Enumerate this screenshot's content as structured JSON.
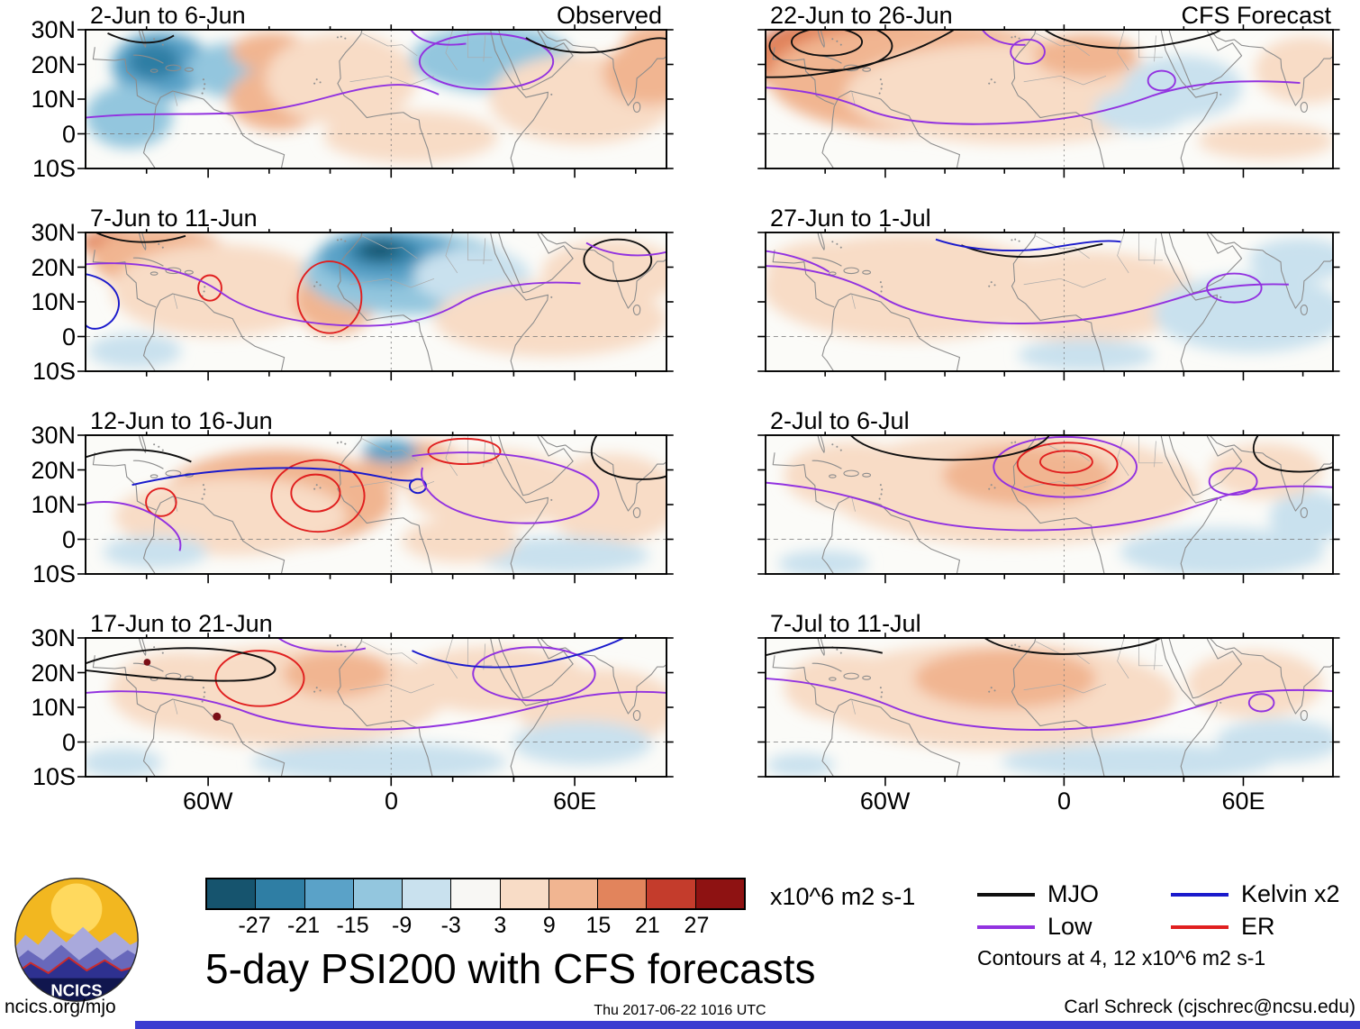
{
  "meta": {
    "footer_left": "ncics.org/mjo",
    "footer_center": "Thu 2017-06-22 1016 UTC",
    "footer_right": "Carl Schreck (cjschrec@ncsu.edu)",
    "logo_text": "NCICS"
  },
  "chart_data": {
    "type": "heatmap",
    "title": "5-day PSI200 with CFS forecasts",
    "description": "Eight 5-day mean 200-hPa streamfunction anomaly maps (shaded, x10^6 m2 s-1) over the tropical Atlantic and Africa with wave-filtered contours; left column observed, right column CFS forecast",
    "columns": [
      {
        "label": "Observed"
      },
      {
        "label": "CFS Forecast"
      }
    ],
    "panels": [
      {
        "title": "2-Jun to 6-Jun",
        "column": "Observed"
      },
      {
        "title": "7-Jun to 11-Jun",
        "column": "Observed"
      },
      {
        "title": "12-Jun to 16-Jun",
        "column": "Observed"
      },
      {
        "title": "17-Jun to 21-Jun",
        "column": "Observed"
      },
      {
        "title": "22-Jun to 26-Jun",
        "column": "CFS Forecast"
      },
      {
        "title": "27-Jun to 1-Jul",
        "column": "CFS Forecast"
      },
      {
        "title": "2-Jul to 6-Jul",
        "column": "CFS Forecast"
      },
      {
        "title": "7-Jul to 11-Jul",
        "column": "CFS Forecast"
      }
    ],
    "y_axis": {
      "ticks": [
        "30N",
        "20N",
        "10N",
        "0",
        "10S"
      ],
      "lat_range": [
        30,
        -10
      ]
    },
    "x_axis": {
      "ticks": [
        "60W",
        "0",
        "60E"
      ],
      "lon_range": [
        -100,
        90
      ]
    },
    "colorbar": {
      "units": "x10^6 m2 s-1",
      "tick_values": [
        "-27",
        "-21",
        "-15",
        "-9",
        "-3",
        "3",
        "9",
        "15",
        "21",
        "27"
      ],
      "colors": [
        "#16546e",
        "#2f7ea4",
        "#5aa2c8",
        "#93c6de",
        "#c9e1ee",
        "#f8f7f4",
        "#f8dcc6",
        "#f1b591",
        "#e2845c",
        "#c43c2c",
        "#8e1212"
      ]
    },
    "legend": [
      {
        "label": "MJO",
        "color": "#101010"
      },
      {
        "label": "Low",
        "color": "#9232e0"
      },
      {
        "label": "Kelvin x2",
        "color": "#1a1acc"
      },
      {
        "label": "ER",
        "color": "#e01f1f"
      }
    ],
    "contours_note": "Contours at 4, 12 x10^6 m2 s-1"
  }
}
